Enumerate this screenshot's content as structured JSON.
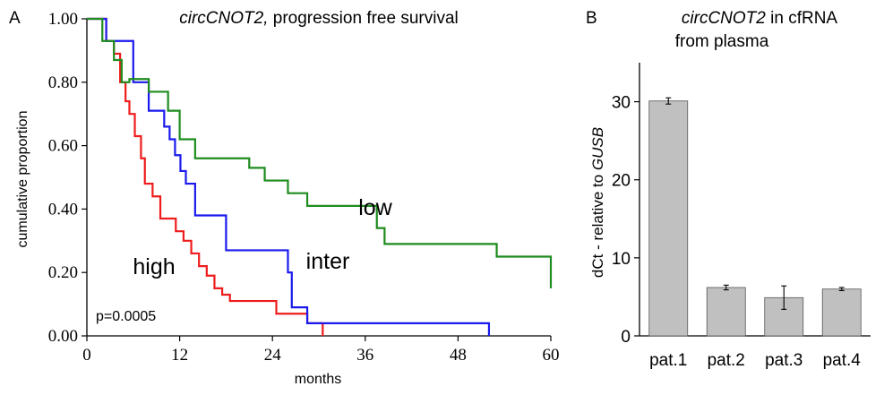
{
  "figure": {
    "panel_a_label": "A",
    "panel_b_label": "B"
  },
  "chart_data": [
    {
      "type": "line",
      "step": true,
      "title_gene": "circCNOT2,",
      "title_rest": " progression free survival",
      "xlabel": "months",
      "ylabel": "cumulative proportion",
      "xlim": [
        0,
        60
      ],
      "ylim": [
        0,
        1
      ],
      "xticks": [
        0,
        12,
        24,
        36,
        48,
        60
      ],
      "xtick_labels": [
        "0",
        "12",
        "24",
        "36",
        "48",
        "60"
      ],
      "yticks": [
        0,
        0.2,
        0.4,
        0.6,
        0.8,
        1.0
      ],
      "ytick_labels": [
        "0.00",
        "0.20",
        "0.40",
        "0.60",
        "0.80",
        "1.00"
      ],
      "grid": false,
      "annotations": [
        {
          "text": "p=0.0005"
        }
      ],
      "series": [
        {
          "name": "high",
          "color": "#ee1c1c",
          "x": [
            0,
            2.5,
            3.5,
            4.3,
            5.0,
            5.5,
            6.2,
            7.0,
            7.5,
            8.5,
            9.5,
            11.5,
            12.5,
            13.5,
            14.5,
            15.5,
            16.5,
            17.5,
            18.5,
            24.5,
            28.5,
            30.5,
            30.5
          ],
          "y": [
            1.0,
            0.93,
            0.89,
            0.8,
            0.74,
            0.7,
            0.63,
            0.56,
            0.48,
            0.44,
            0.37,
            0.33,
            0.3,
            0.26,
            0.22,
            0.19,
            0.15,
            0.13,
            0.11,
            0.07,
            0.04,
            0.0,
            0.0
          ]
        },
        {
          "name": "inter",
          "color": "#1a1aee",
          "x": [
            0,
            2.5,
            3.5,
            6.0,
            8.0,
            10.0,
            10.7,
            11.4,
            12.1,
            12.8,
            14.0,
            17.2,
            18.0,
            26.0,
            26.5,
            28.5,
            52.0,
            52.0
          ],
          "y": [
            1.0,
            0.93,
            0.93,
            0.8,
            0.71,
            0.66,
            0.62,
            0.57,
            0.52,
            0.48,
            0.38,
            0.38,
            0.27,
            0.2,
            0.09,
            0.04,
            0.04,
            0.0
          ]
        },
        {
          "name": "low",
          "color": "#1e8c1e",
          "x": [
            0,
            2.0,
            3.5,
            4.5,
            5.5,
            8.0,
            10.5,
            12.0,
            14.0,
            21.0,
            23.0,
            26.0,
            28.5,
            37.5,
            38.5,
            53.0,
            60.0
          ],
          "y": [
            1.0,
            0.93,
            0.87,
            0.8,
            0.81,
            0.77,
            0.71,
            0.62,
            0.56,
            0.53,
            0.49,
            0.45,
            0.41,
            0.34,
            0.29,
            0.25,
            0.15
          ]
        }
      ]
    },
    {
      "type": "bar",
      "title_gene": "circCNOT2",
      "title_rest": " in cfRNA",
      "title_line2": "from plasma",
      "ylabel_prefix": "dCt - relative to ",
      "ylabel_gene": "GUSB",
      "categories": [
        "pat.1",
        "pat.2",
        "pat.3",
        "pat.4"
      ],
      "values": [
        30.1,
        6.2,
        4.9,
        6.0
      ],
      "errors": [
        0.4,
        0.3,
        1.5,
        0.2
      ],
      "ylim": [
        0,
        35
      ],
      "yticks": [
        0,
        10,
        20,
        30
      ],
      "ytick_labels": [
        "0",
        "10",
        "20",
        "30"
      ],
      "bar_color": "#c0c0c0",
      "grid": false
    }
  ]
}
